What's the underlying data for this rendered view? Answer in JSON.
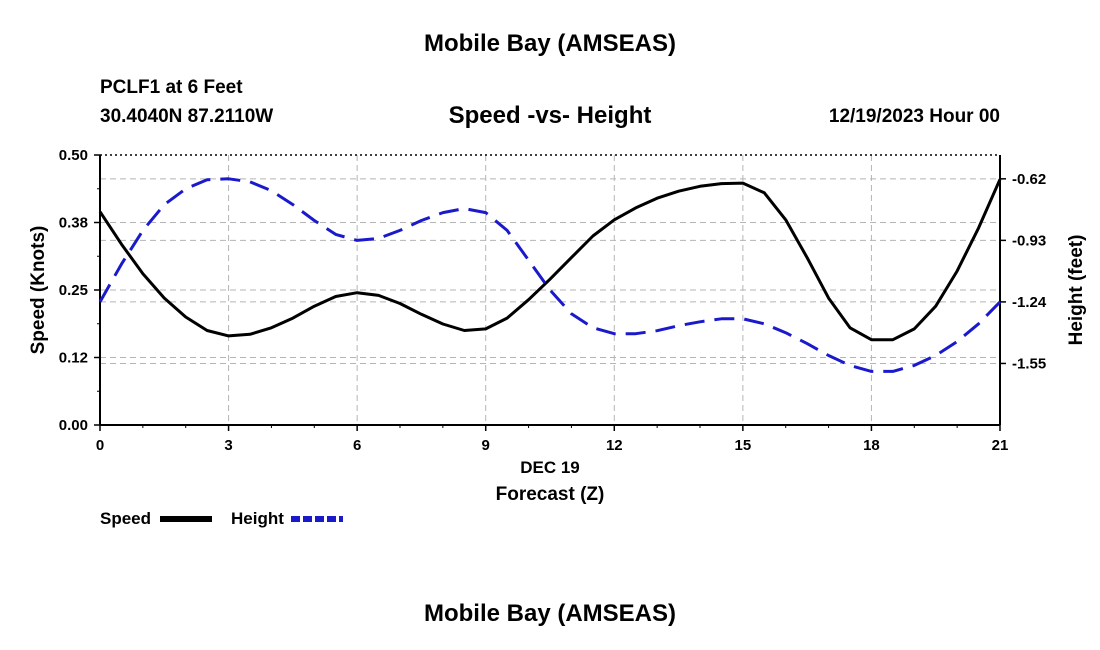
{
  "header": {
    "title": "Mobile Bay (AMSEAS)",
    "station": "PCLF1 at 6 Feet",
    "coordinates": "30.4040N  87.2110W",
    "chart_title": "Speed -vs- Height",
    "datetime": "12/19/2023 Hour 00"
  },
  "footer": {
    "title": "Mobile Bay (AMSEAS)"
  },
  "legend": {
    "speed_label": "Speed",
    "height_label": "Height",
    "speed_color": "#000000",
    "height_color": "#1a1acc"
  },
  "chart_data": {
    "type": "line",
    "title": "Speed -vs- Height",
    "xlabel": "Forecast (Z)",
    "xlabel_date": "DEC 19",
    "ylabel_left": "Speed (Knots)",
    "ylabel_right": "Height (feet)",
    "xlim": [
      0,
      21
    ],
    "ylim_left": [
      0,
      0.5
    ],
    "ylim_right": [
      -1.86,
      -0.5
    ],
    "x_ticks": [
      0,
      3,
      6,
      9,
      12,
      15,
      18,
      21
    ],
    "x_tick_labels": [
      "0",
      "3",
      "6",
      "9",
      "12",
      "15",
      "18",
      "21"
    ],
    "y_left_ticks": [
      0,
      0.125,
      0.25,
      0.375,
      0.5
    ],
    "y_left_tick_labels": [
      "0.00",
      "0.12",
      "0.25",
      "0.38",
      "0.50"
    ],
    "y_right_ticks": [
      -1.55,
      -1.24,
      -0.93,
      -0.62
    ],
    "y_right_tick_labels": [
      "-1.55",
      "-1.24",
      "-0.93",
      "-0.62"
    ],
    "grid": true,
    "series": [
      {
        "name": "Speed",
        "axis": "left",
        "color": "#000000",
        "dash": "solid",
        "x": [
          0,
          0.5,
          1,
          1.5,
          2,
          2.5,
          3,
          3.5,
          4,
          4.5,
          5,
          5.5,
          6,
          6.5,
          7,
          7.5,
          8,
          8.5,
          9,
          9.5,
          10,
          10.5,
          11,
          11.5,
          12,
          12.5,
          13,
          13.5,
          14,
          14.5,
          15,
          15.5,
          16,
          16.5,
          17,
          17.5,
          18,
          18.5,
          19,
          19.5,
          20,
          20.5,
          21
        ],
        "values": [
          0.395,
          0.335,
          0.28,
          0.235,
          0.2,
          0.175,
          0.165,
          0.168,
          0.18,
          0.198,
          0.22,
          0.238,
          0.245,
          0.24,
          0.225,
          0.205,
          0.187,
          0.175,
          0.178,
          0.198,
          0.232,
          0.27,
          0.31,
          0.35,
          0.38,
          0.402,
          0.42,
          0.433,
          0.442,
          0.447,
          0.448,
          0.43,
          0.38,
          0.31,
          0.235,
          0.18,
          0.158,
          0.158,
          0.178,
          0.22,
          0.285,
          0.365,
          0.455
        ]
      },
      {
        "name": "Height",
        "axis": "right",
        "color": "#1a1acc",
        "dash": "dashed",
        "x": [
          0,
          0.5,
          1,
          1.5,
          2,
          2.5,
          3,
          3.5,
          4,
          4.5,
          5,
          5.5,
          6,
          6.5,
          7,
          7.5,
          8,
          8.5,
          9,
          9.5,
          10,
          10.5,
          11,
          11.5,
          12,
          12.5,
          13,
          13.5,
          14,
          14.5,
          15,
          15.5,
          16,
          16.5,
          17,
          17.5,
          18,
          18.5,
          19,
          19.5,
          20,
          20.5,
          21
        ],
        "values": [
          -1.24,
          -1.05,
          -0.88,
          -0.75,
          -0.67,
          -0.625,
          -0.62,
          -0.635,
          -0.68,
          -0.75,
          -0.83,
          -0.9,
          -0.93,
          -0.92,
          -0.88,
          -0.83,
          -0.79,
          -0.77,
          -0.79,
          -0.88,
          -1.03,
          -1.18,
          -1.3,
          -1.37,
          -1.4,
          -1.4,
          -1.385,
          -1.36,
          -1.34,
          -1.325,
          -1.325,
          -1.35,
          -1.395,
          -1.45,
          -1.51,
          -1.56,
          -1.59,
          -1.59,
          -1.56,
          -1.51,
          -1.44,
          -1.35,
          -1.24
        ]
      }
    ]
  }
}
